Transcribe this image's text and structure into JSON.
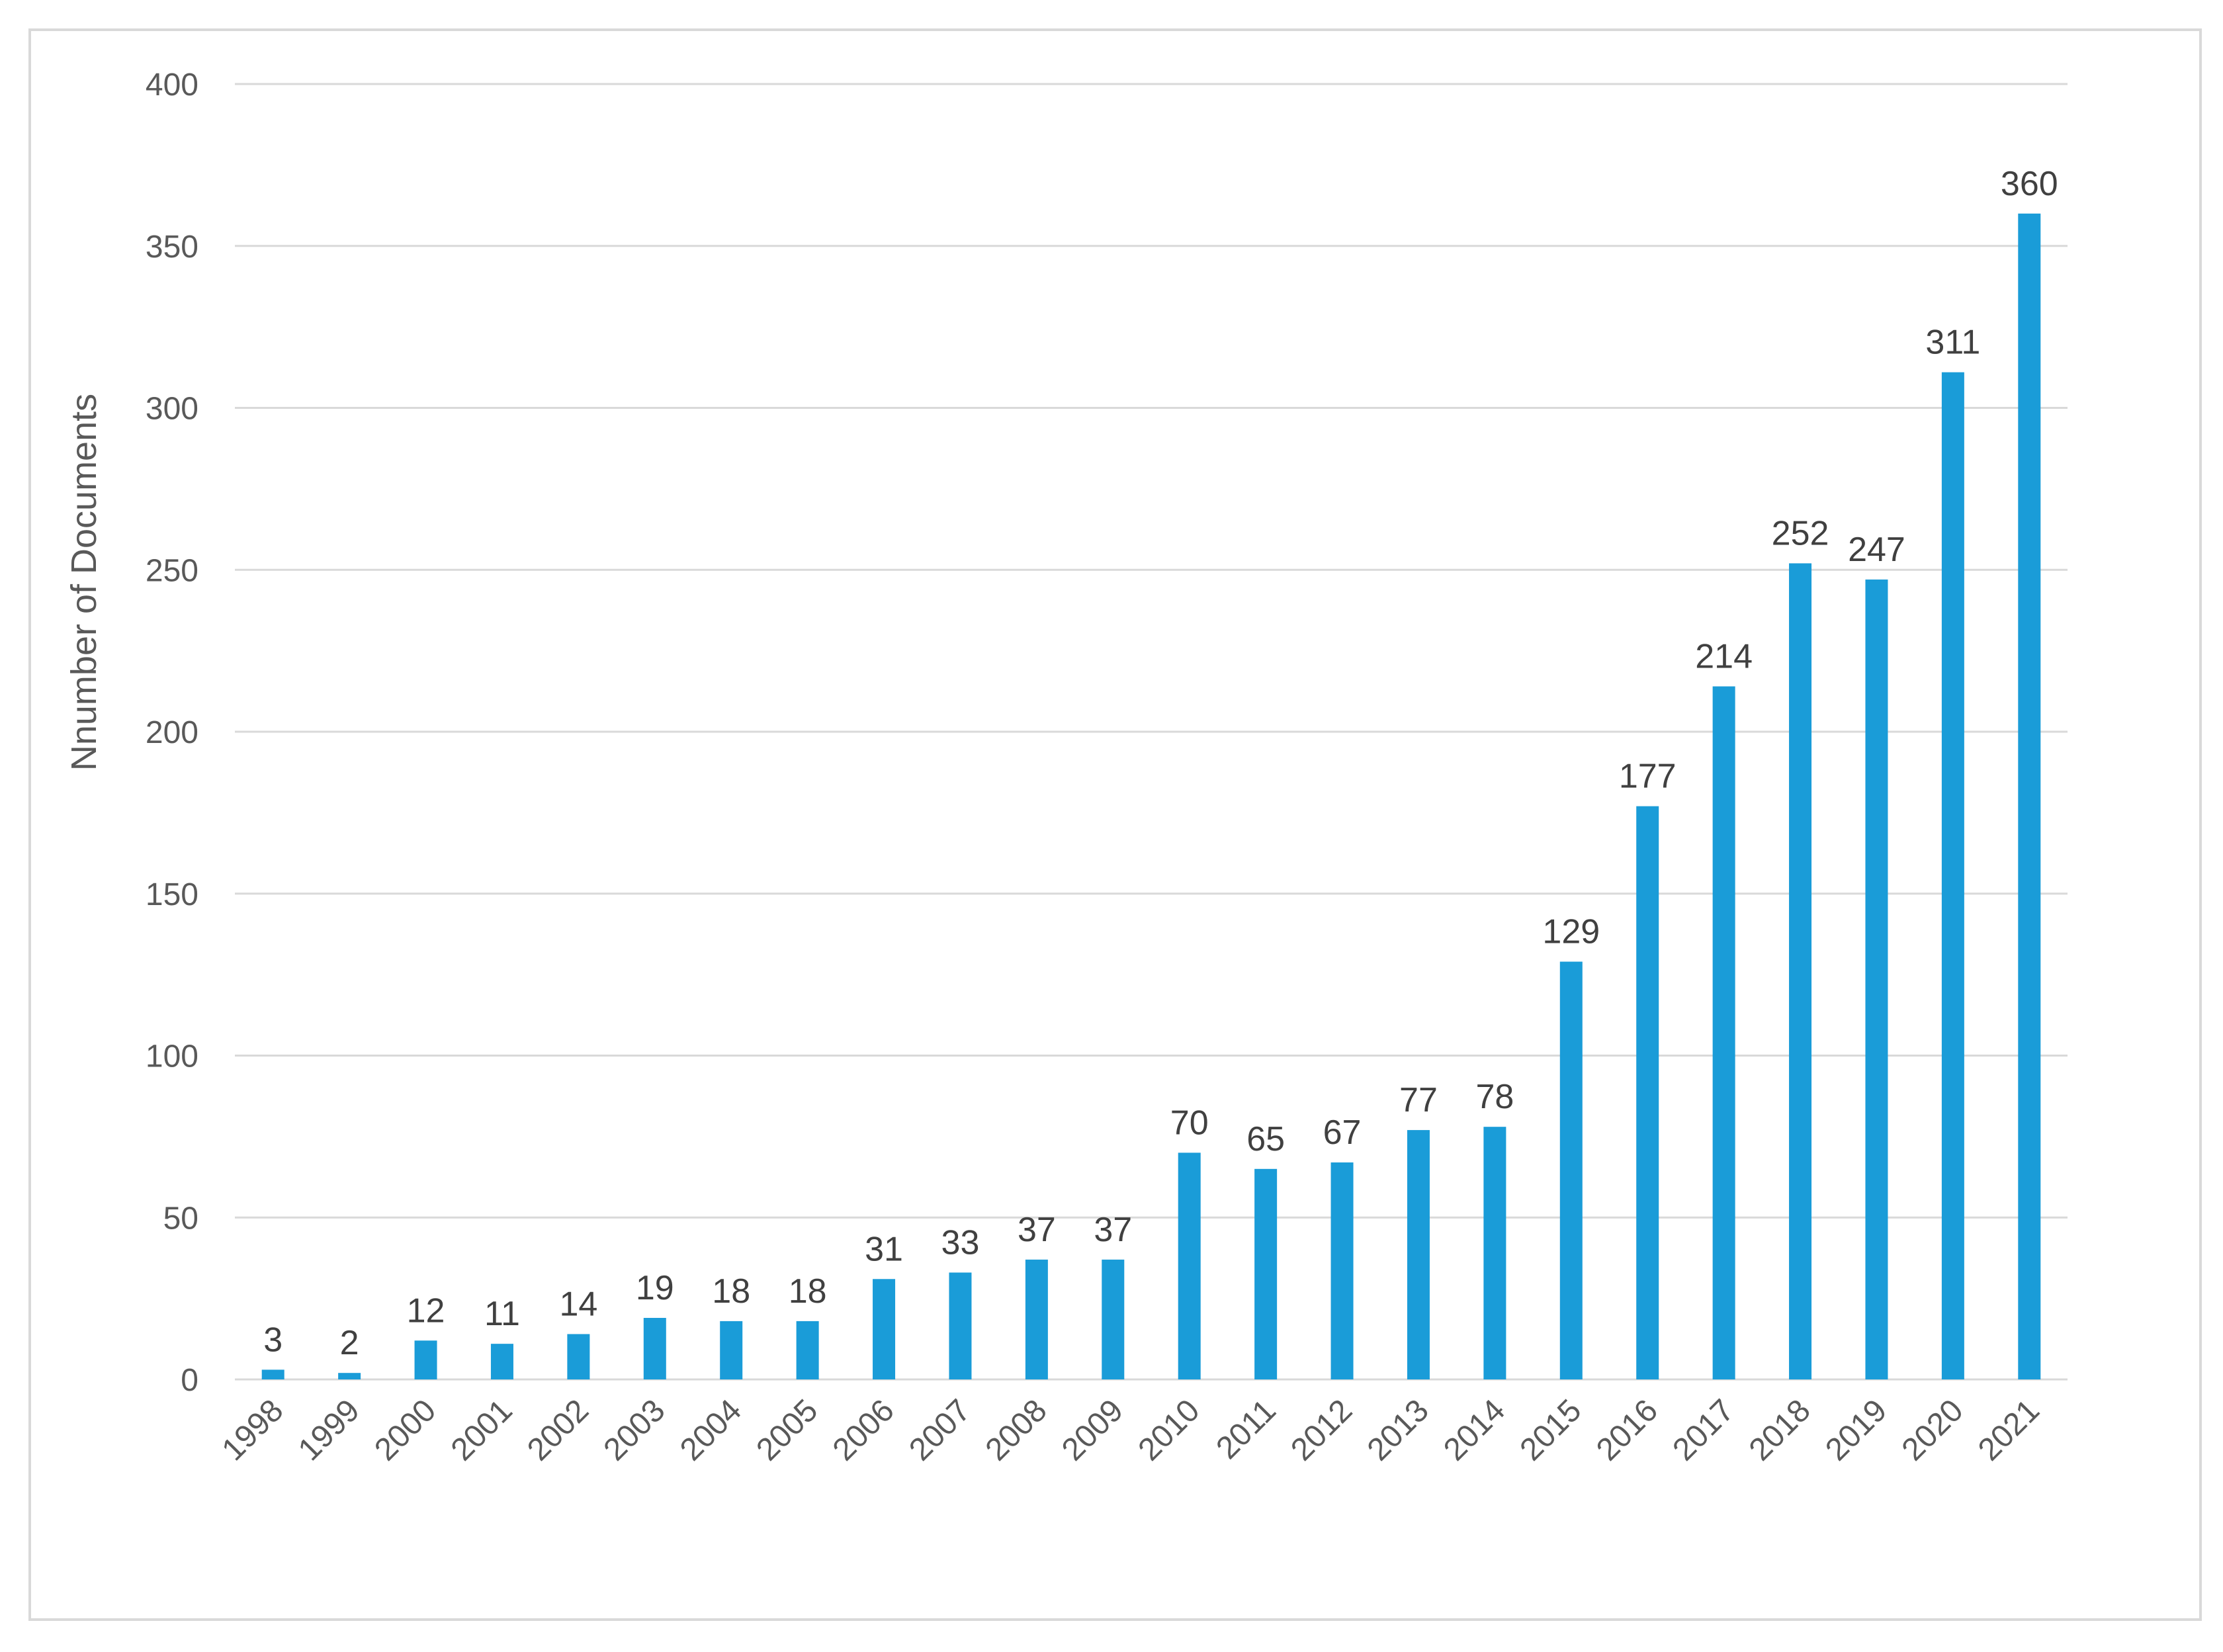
{
  "chart_data": {
    "type": "bar",
    "title": "",
    "xlabel": "",
    "ylabel": "Nnumber of Documents",
    "categories": [
      "1998",
      "1999",
      "2000",
      "2001",
      "2002",
      "2003",
      "2004",
      "2005",
      "2006",
      "2007",
      "2008",
      "2009",
      "2010",
      "2011",
      "2012",
      "2013",
      "2014",
      "2015",
      "2016",
      "2017",
      "2018",
      "2019",
      "2020",
      "2021"
    ],
    "values": [
      3,
      2,
      12,
      11,
      14,
      19,
      18,
      18,
      31,
      33,
      37,
      37,
      70,
      65,
      67,
      77,
      78,
      129,
      177,
      214,
      252,
      247,
      311,
      360
    ],
    "ylim": [
      0,
      400
    ],
    "yticks": [
      0,
      50,
      100,
      150,
      200,
      250,
      300,
      350,
      400
    ],
    "grid": true,
    "legend": "none",
    "data_labels": true,
    "x_tick_rotation": -45,
    "colors": {
      "bar": "#1a9cd8",
      "grid": "#d9d9d9",
      "frame": "#d9d9d9"
    }
  }
}
